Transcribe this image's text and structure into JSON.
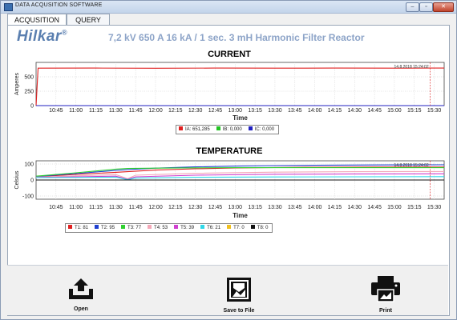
{
  "window": {
    "title": "DATA ACQUSITION SOFTWARE",
    "buttons": [
      "–",
      "▫",
      "✕"
    ]
  },
  "tabs": [
    {
      "label": "ACQUSITION",
      "active": true
    },
    {
      "label": "QUERY",
      "active": false
    }
  ],
  "header": {
    "logo": "Hilkar",
    "logo_mark": "®",
    "subtitle": "7,2 kV 650 A 16 kA / 1 sec. 3 mH Harmonic Filter Reactor"
  },
  "current": {
    "title": "CURRENT",
    "ylabel": "Amperes",
    "xlabel": "Time",
    "timestamp": "14.8.2018 15:24:02",
    "legend": [
      {
        "label": "IA:",
        "value": "651,285",
        "color": "#e02020"
      },
      {
        "label": "IB:",
        "value": "0,000",
        "color": "#22c322"
      },
      {
        "label": "IC:",
        "value": "0,000",
        "color": "#2020c0"
      }
    ]
  },
  "temperature": {
    "title": "TEMPERATURE",
    "ylabel": "Celsius",
    "xlabel": "Time",
    "timestamp": "14.8.2018 15:24:02",
    "legend": [
      {
        "label": "T1:",
        "value": "81",
        "color": "#e02020"
      },
      {
        "label": "T2:",
        "value": "95",
        "color": "#2040d0"
      },
      {
        "label": "T3:",
        "value": "77",
        "color": "#30d030"
      },
      {
        "label": "T4:",
        "value": "53",
        "color": "#f4a8b8"
      },
      {
        "label": "T5:",
        "value": "39",
        "color": "#d040d0"
      },
      {
        "label": "T6:",
        "value": "21",
        "color": "#30d8e8"
      },
      {
        "label": "T7:",
        "value": "0",
        "color": "#f0c020"
      },
      {
        "label": "T8:",
        "value": "0",
        "color": "#111111"
      }
    ]
  },
  "actions": {
    "open": "Open",
    "save": "Save to File",
    "print": "Print"
  },
  "chart_data": [
    {
      "type": "line",
      "title": "CURRENT",
      "xlabel": "Time",
      "ylabel": "Amperes",
      "x": [
        "10:45",
        "11:00",
        "11:15",
        "11:30",
        "11:45",
        "12:00",
        "12:15",
        "12:30",
        "12:45",
        "13:00",
        "13:15",
        "13:30",
        "13:45",
        "14:00",
        "14:15",
        "14:30",
        "14:45",
        "15:00",
        "15:15",
        "15:30"
      ],
      "yticks": [
        0,
        250,
        500
      ],
      "ylim": [
        0,
        750
      ],
      "xlim": [
        0.0,
        20.5
      ],
      "series": [
        {
          "name": "IA",
          "color": "#e02020",
          "points": [
            [
              0.0,
              0
            ],
            [
              0.1,
              650
            ],
            [
              3.0,
              652
            ],
            [
              6.0,
              649
            ],
            [
              9.0,
              651
            ],
            [
              12.0,
              650
            ],
            [
              15.0,
              652
            ],
            [
              18.0,
              650
            ],
            [
              19.8,
              651
            ],
            [
              20.5,
              651
            ]
          ]
        },
        {
          "name": "IB",
          "color": "#22c322",
          "points": [
            [
              0.0,
              0
            ],
            [
              20.5,
              0
            ]
          ]
        },
        {
          "name": "IC",
          "color": "#2020c0",
          "points": [
            [
              0.0,
              0
            ],
            [
              20.5,
              0
            ]
          ]
        }
      ]
    },
    {
      "type": "line",
      "title": "TEMPERATURE",
      "xlabel": "Time",
      "ylabel": "Celsius",
      "x": [
        "10:45",
        "11:00",
        "11:15",
        "11:30",
        "11:45",
        "12:00",
        "12:15",
        "12:30",
        "12:45",
        "13:00",
        "13:15",
        "13:30",
        "13:45",
        "14:00",
        "14:15",
        "14:30",
        "14:45",
        "15:00",
        "15:15",
        "15:30"
      ],
      "yticks": [
        -100,
        0,
        100
      ],
      "ylim": [
        -120,
        120
      ],
      "xlim": [
        0.0,
        20.5
      ],
      "series": [
        {
          "name": "T1",
          "color": "#e02020",
          "points": [
            [
              0.0,
              20
            ],
            [
              2.0,
              35
            ],
            [
              4.0,
              48
            ],
            [
              4.6,
              52
            ],
            [
              6.0,
              62
            ],
            [
              8.0,
              70
            ],
            [
              10.0,
              75
            ],
            [
              12.0,
              78
            ],
            [
              14.0,
              80
            ],
            [
              17.0,
              81
            ],
            [
              20.5,
              81
            ]
          ]
        },
        {
          "name": "T2",
          "color": "#2040d0",
          "points": [
            [
              0.0,
              22
            ],
            [
              2.0,
              40
            ],
            [
              4.0,
              60
            ],
            [
              4.6,
              65
            ],
            [
              6.0,
              74
            ],
            [
              8.0,
              82
            ],
            [
              10.0,
              87
            ],
            [
              12.0,
              90
            ],
            [
              14.0,
              92
            ],
            [
              17.0,
              94
            ],
            [
              20.5,
              95
            ]
          ]
        },
        {
          "name": "T3",
          "color": "#30d030",
          "points": [
            [
              0.0,
              24
            ],
            [
              2.0,
              45
            ],
            [
              4.0,
              68
            ],
            [
              4.6,
              72
            ],
            [
              6.0,
              74
            ],
            [
              8.0,
              76
            ],
            [
              10.0,
              77
            ],
            [
              14.0,
              77
            ],
            [
              20.5,
              77
            ]
          ]
        },
        {
          "name": "T4",
          "color": "#f4a8b8",
          "points": [
            [
              0.0,
              18
            ],
            [
              2.0,
              26
            ],
            [
              4.0,
              34
            ],
            [
              4.6,
              8
            ],
            [
              5.0,
              30
            ],
            [
              8.0,
              42
            ],
            [
              12.0,
              49
            ],
            [
              16.0,
              52
            ],
            [
              20.5,
              53
            ]
          ]
        },
        {
          "name": "T5",
          "color": "#d040d0",
          "points": [
            [
              0.0,
              16
            ],
            [
              2.0,
              20
            ],
            [
              4.0,
              24
            ],
            [
              4.6,
              4
            ],
            [
              5.0,
              20
            ],
            [
              8.0,
              30
            ],
            [
              12.0,
              36
            ],
            [
              16.0,
              38
            ],
            [
              20.5,
              39
            ]
          ]
        },
        {
          "name": "T6",
          "color": "#30d8e8",
          "points": [
            [
              0.0,
              15
            ],
            [
              2.0,
              16
            ],
            [
              4.0,
              18
            ],
            [
              4.6,
              2
            ],
            [
              5.0,
              12
            ],
            [
              8.0,
              17
            ],
            [
              12.0,
              19
            ],
            [
              16.0,
              20
            ],
            [
              20.5,
              21
            ]
          ]
        },
        {
          "name": "T7",
          "color": "#f0c020",
          "points": [
            [
              0.0,
              0
            ],
            [
              20.5,
              0
            ]
          ]
        },
        {
          "name": "T8",
          "color": "#111111",
          "points": [
            [
              0.0,
              0
            ],
            [
              20.5,
              0
            ]
          ]
        }
      ]
    }
  ]
}
